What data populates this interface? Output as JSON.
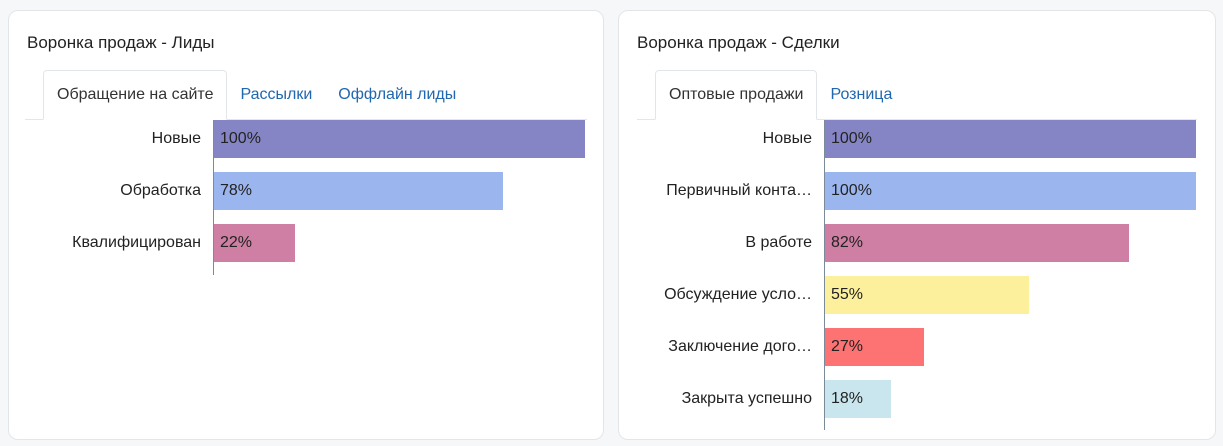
{
  "panels": [
    {
      "title": "Воронка продаж - Лиды",
      "tabs": [
        "Обращение на сайте",
        "Рассылки",
        "Оффлайн лиды"
      ],
      "active_tab": 0,
      "rows": [
        {
          "label": "Новые",
          "value_text": "100%",
          "fraction": 1.0,
          "color": "#8585c6"
        },
        {
          "label": "Обработка",
          "value_text": "78%",
          "fraction": 0.78,
          "color": "#9bb5ee"
        },
        {
          "label": "Квалифицирован",
          "value_text": "22%",
          "fraction": 0.22,
          "color": "#cf7fa3"
        }
      ]
    },
    {
      "title": "Воронка продаж - Сделки",
      "tabs": [
        "Оптовые продажи",
        "Розница"
      ],
      "active_tab": 0,
      "rows": [
        {
          "label": "Новые",
          "value_text": "100%",
          "fraction": 1.0,
          "color": "#8585c6"
        },
        {
          "label": "Первичный конта…",
          "value_text": "100%",
          "fraction": 1.0,
          "color": "#9bb5ee"
        },
        {
          "label": "В работе",
          "value_text": "82%",
          "fraction": 0.82,
          "color": "#cf7fa3"
        },
        {
          "label": "Обсуждение усло…",
          "value_text": "55%",
          "fraction": 0.55,
          "color": "#fdf09c"
        },
        {
          "label": "Заключение дого…",
          "value_text": "27%",
          "fraction": 0.27,
          "color": "#fd7273"
        },
        {
          "label": "Закрыта успешно",
          "value_text": "18%",
          "fraction": 0.18,
          "color": "#c9e6ee"
        }
      ]
    }
  ]
}
